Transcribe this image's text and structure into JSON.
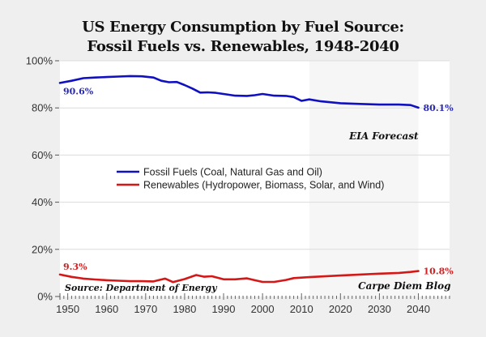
{
  "chart_data": {
    "type": "line",
    "title_lines": [
      "US Energy Consumption by Fuel Source:",
      "Fossil Fuels vs. Renewables, 1948-2040"
    ],
    "xlabel": "",
    "ylabel": "",
    "xlim": [
      1948,
      2048
    ],
    "ylim": [
      0,
      100
    ],
    "x_ticks": [
      1950,
      1960,
      1970,
      1980,
      1990,
      2000,
      2010,
      2020,
      2030,
      2040
    ],
    "y_ticks": [
      0,
      20,
      40,
      60,
      80,
      100
    ],
    "y_tick_labels": [
      "0%",
      "20%",
      "40%",
      "60%",
      "80%",
      "100%"
    ],
    "grid": true,
    "legend_position": "center",
    "forecast_region": {
      "start": 2012,
      "end": 2040,
      "label": "EIA Forecast"
    },
    "series": [
      {
        "name": "Fossil Fuels (Coal, Natural Gas and Oil)",
        "color": "#1010c0",
        "start_label": "90.6%",
        "end_label": "80.1%",
        "x": [
          1948,
          1951,
          1954,
          1957,
          1960,
          1963,
          1966,
          1969,
          1972,
          1974,
          1976,
          1978,
          1980,
          1982,
          1984,
          1986,
          1988,
          1990,
          1993,
          1996,
          1998,
          2000,
          2003,
          2006,
          2008,
          2010,
          2012,
          2015,
          2020,
          2025,
          2030,
          2035,
          2038,
          2040
        ],
        "values": [
          90.6,
          91.5,
          92.6,
          92.9,
          93.1,
          93.3,
          93.5,
          93.4,
          92.9,
          91.5,
          90.9,
          91.0,
          89.7,
          88.2,
          86.5,
          86.6,
          86.4,
          85.9,
          85.2,
          85.1,
          85.4,
          85.9,
          85.2,
          85.1,
          84.6,
          83.0,
          83.6,
          82.8,
          82.0,
          81.7,
          81.4,
          81.4,
          81.2,
          80.1
        ]
      },
      {
        "name": "Renewables (Hydropower, Biomass, Solar, and Wind)",
        "color": "#d41818",
        "start_label": "9.3%",
        "end_label": "10.8%",
        "x": [
          1948,
          1951,
          1954,
          1957,
          1960,
          1963,
          1966,
          1969,
          1972,
          1975,
          1977,
          1980,
          1983,
          1985,
          1987,
          1990,
          1993,
          1996,
          1998,
          2000,
          2003,
          2006,
          2008,
          2010,
          2012,
          2015,
          2020,
          2025,
          2030,
          2035,
          2038,
          2040
        ],
        "values": [
          9.3,
          8.3,
          7.6,
          7.2,
          6.9,
          6.7,
          6.5,
          6.5,
          6.4,
          7.6,
          6.1,
          7.4,
          9.1,
          8.4,
          8.6,
          7.3,
          7.3,
          7.7,
          6.9,
          6.2,
          6.2,
          7.0,
          7.8,
          8.0,
          8.2,
          8.5,
          8.9,
          9.3,
          9.7,
          10.0,
          10.4,
          10.8
        ]
      }
    ],
    "annotations": {
      "source": "Source: Department of Energy",
      "credit": "Carpe Diem Blog",
      "forecast": "EIA Forecast"
    }
  }
}
